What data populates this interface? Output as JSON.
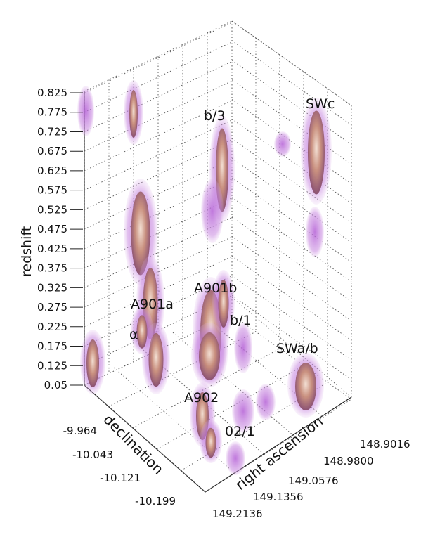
{
  "chart_data": {
    "type": "scatter",
    "subtype": "3d-volume-render",
    "title": "",
    "zlabel": "redshift",
    "zticks": [
      "0.825",
      "0.775",
      "0.725",
      "0.675",
      "0.625",
      "0.575",
      "0.525",
      "0.475",
      "0.425",
      "0.375",
      "0.325",
      "0.275",
      "0.225",
      "0.175",
      "0.125",
      "0.05"
    ],
    "zlim": [
      0.05,
      0.825
    ],
    "ylabel": "declination",
    "yticks": [
      "-9.964",
      "-10.043",
      "-10.121",
      "-10.199"
    ],
    "xlabel": "right ascension",
    "xticks": [
      "148.9016",
      "148.9800",
      "149.0576",
      "149.1356",
      "149.2136"
    ],
    "grid": true,
    "colors": {
      "volume": "#9b3fc8",
      "volume_light": "#d9a3e6",
      "core": "#c48a6e",
      "core_light": "#f1d9c4"
    },
    "annotations": [
      {
        "text": "SWc"
      },
      {
        "text": "b/3"
      },
      {
        "text": "A901b"
      },
      {
        "text": "A901a"
      },
      {
        "text": "b/1"
      },
      {
        "text": "α"
      },
      {
        "text": "SWa/b"
      },
      {
        "text": "A902"
      },
      {
        "text": "02/1"
      }
    ]
  }
}
